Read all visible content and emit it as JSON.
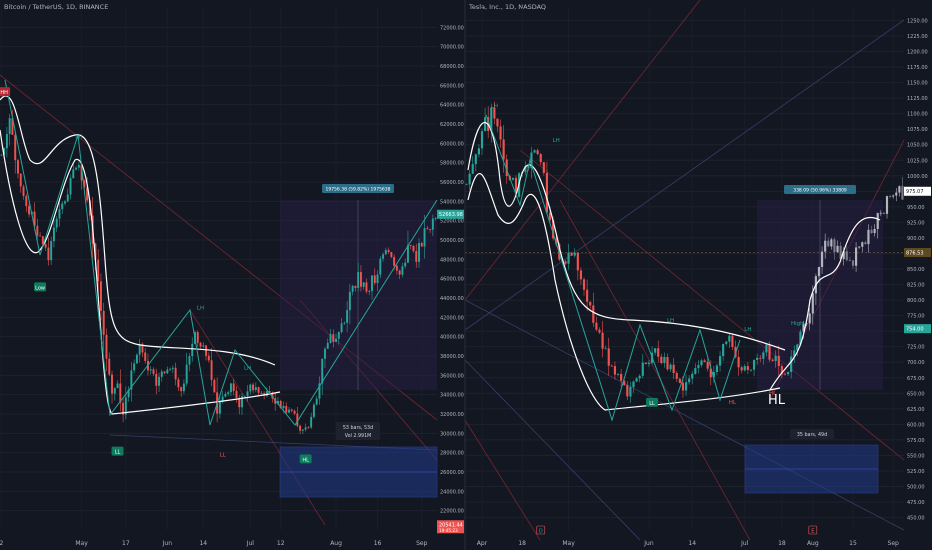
{
  "chart_data": [
    {
      "type": "candlestick",
      "symbol_title": "Bitcoin / TetherUS, 1D, BINANCE",
      "y_axis": {
        "min": 20000,
        "max": 74000,
        "ticks": [
          "22000.00",
          "24000.00",
          "26000.00",
          "28000.00",
          "30000.00",
          "32000.00",
          "34000.00",
          "36000.00",
          "38000.00",
          "40000.00",
          "42000.00",
          "44000.00",
          "46000.00",
          "48000.00",
          "50000.00",
          "52000.00",
          "54000.00",
          "56000.00",
          "58000.00",
          "60000.00",
          "62000.00",
          "64000.00",
          "66000.00",
          "68000.00",
          "70000.00",
          "72000.00"
        ]
      },
      "x_axis": {
        "ticks": [
          {
            "label": "2",
            "index": 0
          },
          {
            "label": "May",
            "index": 29
          },
          {
            "label": "17",
            "index": 45
          },
          {
            "label": "Jun",
            "index": 60
          },
          {
            "label": "14",
            "index": 73
          },
          {
            "label": "Jul",
            "index": 90
          },
          {
            "label": "12",
            "index": 101
          },
          {
            "label": "Aug",
            "index": 121
          },
          {
            "label": "16",
            "index": 136
          },
          {
            "label": "Sep",
            "index": 152
          }
        ]
      },
      "num_bars": 158,
      "price_path": [
        [
          0,
          58000
        ],
        [
          3,
          62000
        ],
        [
          6,
          57000
        ],
        [
          10,
          53000
        ],
        [
          15,
          49000
        ],
        [
          17,
          48000
        ],
        [
          20,
          53000
        ],
        [
          25,
          56000
        ],
        [
          28,
          58000
        ],
        [
          30,
          56000
        ],
        [
          33,
          50000
        ],
        [
          36,
          43000
        ],
        [
          38,
          38000
        ],
        [
          40,
          34000
        ],
        [
          42,
          35000
        ],
        [
          44,
          32000
        ],
        [
          47,
          36000
        ],
        [
          50,
          39000
        ],
        [
          53,
          37000
        ],
        [
          56,
          35000
        ],
        [
          60,
          37000
        ],
        [
          63,
          36000
        ],
        [
          65,
          34000
        ],
        [
          67,
          37000
        ],
        [
          70,
          40000
        ],
        [
          73,
          39000
        ],
        [
          76,
          36000
        ],
        [
          78,
          32000
        ],
        [
          80,
          34000
        ],
        [
          83,
          35000
        ],
        [
          86,
          33000
        ],
        [
          90,
          35000
        ],
        [
          94,
          34500
        ],
        [
          98,
          33500
        ],
        [
          102,
          32500
        ],
        [
          106,
          31800
        ],
        [
          108,
          30000
        ],
        [
          111,
          31000
        ],
        [
          114,
          34000
        ],
        [
          117,
          39000
        ],
        [
          120,
          40000
        ],
        [
          123,
          41000
        ],
        [
          126,
          44000
        ],
        [
          129,
          46000
        ],
        [
          132,
          45000
        ],
        [
          135,
          46000
        ],
        [
          138,
          49000
        ],
        [
          141,
          48000
        ],
        [
          144,
          47000
        ],
        [
          147,
          49000
        ],
        [
          150,
          48000
        ],
        [
          152,
          50000
        ],
        [
          154,
          51000
        ],
        [
          156,
          52663
        ]
      ],
      "last_price": "52663.98",
      "lower_price_label": "20541.44",
      "lower_price_sub": "19:45:23",
      "measure_label": "19756.38 (59.82%) 1975638",
      "bars_label": "53 bars, 53d",
      "vol_label": "Vol 2.991M",
      "pivots": [
        {
          "label": "HH",
          "index": 1,
          "price": 65200,
          "kind": "high-box"
        },
        {
          "label": "Low",
          "index": 14,
          "price": 45000,
          "kind": "low-box"
        },
        {
          "label": "LH",
          "index": 28,
          "price": 60500,
          "kind": "text-green"
        },
        {
          "label": "LH",
          "index": 72,
          "price": 42800,
          "kind": "text-green"
        },
        {
          "label": "LH",
          "index": 89,
          "price": 36600,
          "kind": "text-green"
        },
        {
          "label": "LL",
          "index": 42,
          "price": 28000,
          "kind": "low-box"
        },
        {
          "label": "LL",
          "index": 80,
          "price": 27600,
          "kind": "text-red"
        },
        {
          "label": "HL",
          "index": 110,
          "price": 27200,
          "kind": "low-box"
        }
      ],
      "markers": []
    },
    {
      "type": "candlestick",
      "symbol_title": "Tesla, Inc., 1D, NASDAQ",
      "y_axis": {
        "min": 430,
        "max": 1270,
        "ticks": [
          "450.00",
          "475.00",
          "500.00",
          "525.00",
          "550.00",
          "575.00",
          "600.00",
          "625.00",
          "650.00",
          "675.00",
          "700.00",
          "725.00",
          "750.00",
          "775.00",
          "800.00",
          "825.00",
          "850.00",
          "875.00",
          "900.00",
          "925.00",
          "950.00",
          "975.00",
          "1000.00",
          "1025.00",
          "1050.00",
          "1075.00",
          "1100.00",
          "1125.00",
          "1150.00",
          "1175.00",
          "1200.00",
          "1225.00",
          "1250.00"
        ]
      },
      "x_axis": {
        "ticks": [
          {
            "label": "Apr",
            "index": 5
          },
          {
            "label": "18",
            "index": 18
          },
          {
            "label": "May",
            "index": 33
          },
          {
            "label": "Jun",
            "index": 59
          },
          {
            "label": "14",
            "index": 73
          },
          {
            "label": "Jul",
            "index": 90
          },
          {
            "label": "18",
            "index": 102
          },
          {
            "label": "Aug",
            "index": 112
          },
          {
            "label": "15",
            "index": 125
          },
          {
            "label": "Sep",
            "index": 138
          }
        ]
      },
      "num_bars": 142,
      "price_path": [
        [
          0,
          1000
        ],
        [
          3,
          1050
        ],
        [
          6,
          1080
        ],
        [
          9,
          1100
        ],
        [
          11,
          1050
        ],
        [
          13,
          1010
        ],
        [
          16,
          980
        ],
        [
          19,
          1010
        ],
        [
          22,
          1040
        ],
        [
          24,
          1030
        ],
        [
          26,
          950
        ],
        [
          28,
          900
        ],
        [
          30,
          870
        ],
        [
          32,
          860
        ],
        [
          34,
          880
        ],
        [
          37,
          840
        ],
        [
          40,
          780
        ],
        [
          43,
          740
        ],
        [
          46,
          700
        ],
        [
          49,
          680
        ],
        [
          52,
          650
        ],
        [
          55,
          670
        ],
        [
          58,
          700
        ],
        [
          61,
          720
        ],
        [
          64,
          700
        ],
        [
          67,
          680
        ],
        [
          70,
          660
        ],
        [
          73,
          690
        ],
        [
          76,
          700
        ],
        [
          79,
          680
        ],
        [
          82,
          710
        ],
        [
          85,
          740
        ],
        [
          88,
          700
        ],
        [
          91,
          690
        ],
        [
          94,
          700
        ],
        [
          97,
          720
        ],
        [
          100,
          700
        ],
        [
          103,
          680
        ],
        [
          106,
          710
        ],
        [
          109,
          760
        ],
        [
          112,
          800
        ],
        [
          115,
          880
        ],
        [
          118,
          900
        ],
        [
          121,
          870
        ],
        [
          124,
          860
        ],
        [
          127,
          880
        ],
        [
          130,
          900
        ],
        [
          133,
          930
        ],
        [
          136,
          960
        ],
        [
          139,
          985
        ],
        [
          141,
          975
        ]
      ],
      "last_price": "975.07",
      "secondary_price": "876.53",
      "third_price": "754.00",
      "measure_label": "338.09 (50.96%) 33809",
      "bars_label": "35 bars, 49d",
      "hand_annotation": "HL",
      "pivots": [
        {
          "label": "LH",
          "index": 9,
          "price": 1110,
          "kind": "text-green"
        },
        {
          "label": "LH",
          "index": 29,
          "price": 1054,
          "kind": "text-green"
        },
        {
          "label": "LH",
          "index": 66,
          "price": 765,
          "kind": "text-green"
        },
        {
          "label": "LH",
          "index": 91,
          "price": 750,
          "kind": "text-green"
        },
        {
          "label": "High",
          "index": 107,
          "price": 760,
          "kind": "text-green"
        },
        {
          "label": "LL",
          "index": 60,
          "price": 633,
          "kind": "low-box"
        },
        {
          "label": "HL",
          "index": 86,
          "price": 633,
          "kind": "text-red"
        },
        {
          "label": "HL",
          "index": 99,
          "price": 648,
          "kind": "text-red"
        }
      ],
      "markers": [
        {
          "label": "D",
          "index": 24
        },
        {
          "label": "E",
          "index": 112
        }
      ]
    }
  ]
}
